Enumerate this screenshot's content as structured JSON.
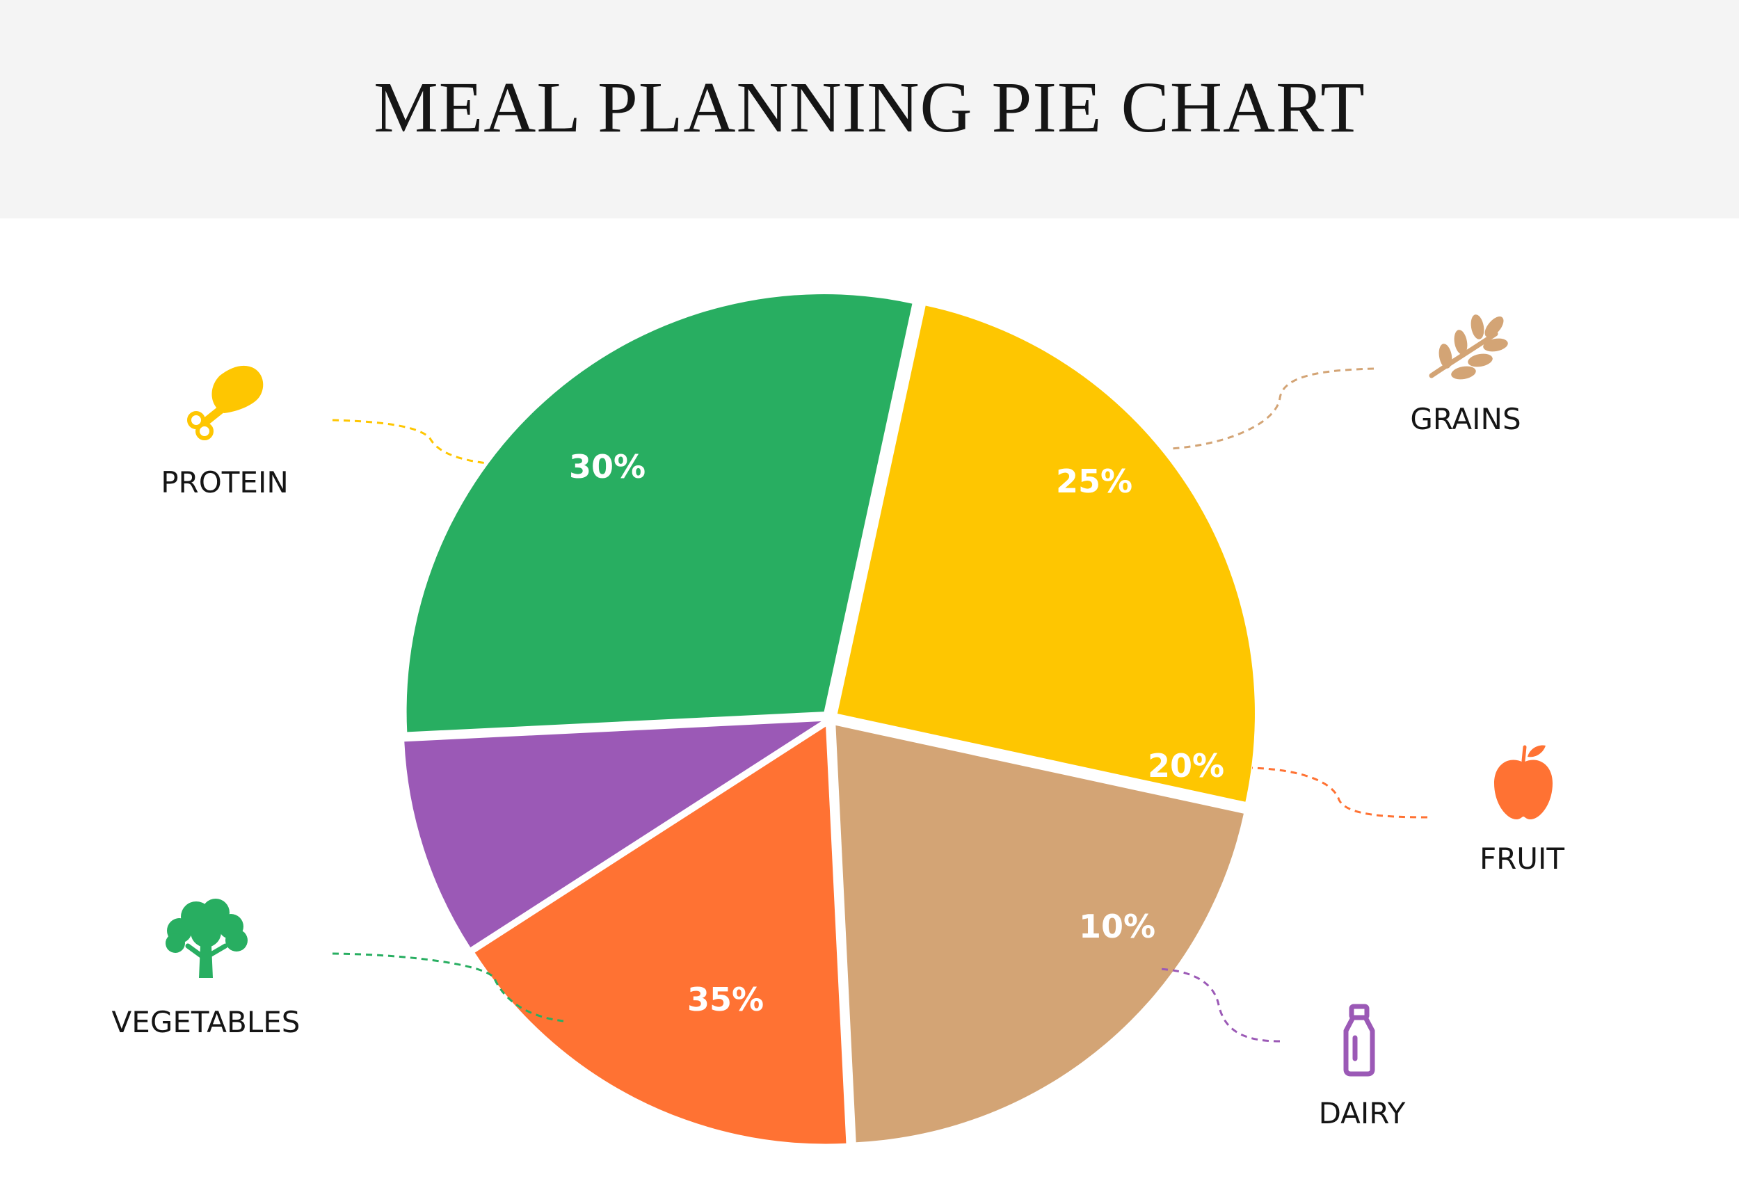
{
  "header": {
    "title": "MEAL PLANNING PIE CHART"
  },
  "chart_data": {
    "type": "pie",
    "title": "MEAL PLANNING PIE CHART",
    "slices": [
      {
        "label": "PROTEIN",
        "value": 30,
        "display": "30%",
        "color": "#fec601",
        "icon": "drumstick-icon"
      },
      {
        "label": "GRAINS",
        "value": 25,
        "display": "25%",
        "color": "#d3a475",
        "icon": "wheat-icon"
      },
      {
        "label": "FRUIT",
        "value": 20,
        "display": "20%",
        "color": "#ff7233",
        "icon": "apple-icon"
      },
      {
        "label": "DAIRY",
        "value": 10,
        "display": "10%",
        "color": "#9b59b6",
        "icon": "milk-bottle-icon"
      },
      {
        "label": "VEGETABLES",
        "value": 35,
        "display": "35%",
        "color": "#28ae61",
        "icon": "broccoli-icon"
      }
    ]
  }
}
